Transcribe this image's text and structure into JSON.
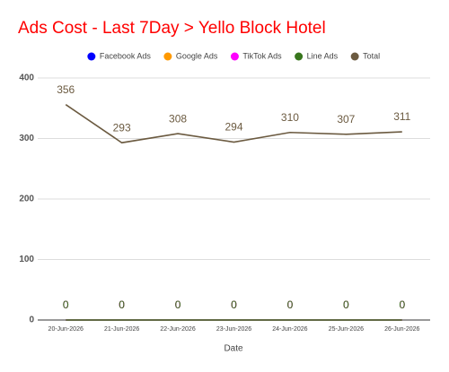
{
  "chart_data": {
    "type": "line",
    "title": "Ads Cost - Last 7Day > Yello Block Hotel",
    "title_color": "#ff0000",
    "x_label": "Date",
    "categories": [
      "20-Jun-2026",
      "21-Jun-2026",
      "22-Jun-2026",
      "23-Jun-2026",
      "24-Jun-2026",
      "25-Jun-2026",
      "26-Jun-2026"
    ],
    "series": [
      {
        "name": "Facebook Ads",
        "color": "#0000ff",
        "values": [
          0,
          0,
          0,
          0,
          0,
          0,
          0
        ]
      },
      {
        "name": "Google Ads",
        "color": "#ff9900",
        "values": [
          0,
          0,
          0,
          0,
          0,
          0,
          0
        ]
      },
      {
        "name": "TikTok Ads",
        "color": "#ff00ff",
        "values": [
          0,
          0,
          0,
          0,
          0,
          0,
          0
        ]
      },
      {
        "name": "Line Ads",
        "color": "#38761d",
        "values": [
          0,
          0,
          0,
          0,
          0,
          0,
          0
        ]
      },
      {
        "name": "Total",
        "color": "#6b5a40",
        "values": [
          356,
          293,
          308,
          294,
          310,
          307,
          311
        ]
      }
    ],
    "ylim": [
      0,
      400
    ],
    "yticks": [
      0,
      100,
      200,
      300,
      400
    ],
    "grid": true,
    "data_labels": true,
    "legend": "top"
  }
}
